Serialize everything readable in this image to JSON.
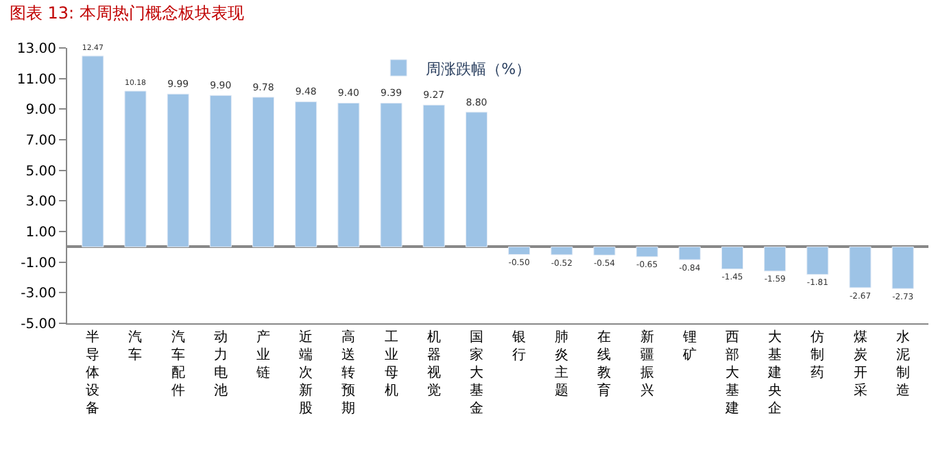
{
  "chart_data": {
    "type": "bar",
    "title": "图表 13: 本周热门概念板块表现",
    "categories": [
      "半导体设备",
      "汽车",
      "汽车配件",
      "动力电池",
      "产业链",
      "近端次新股",
      "高送转预期",
      "工业母机",
      "机器视觉",
      "国家大基金",
      "银行",
      "肺炎主题",
      "在线教育",
      "新疆振兴",
      "锂矿",
      "西部大基建",
      "大基建央企",
      "仿制药",
      "煤炭开采",
      "水泥制造"
    ],
    "series": [
      {
        "name": "周涨跌幅（%）",
        "color": "#9dc3e6",
        "values": [
          12.47,
          10.18,
          9.99,
          9.9,
          9.78,
          9.48,
          9.4,
          9.39,
          9.27,
          8.8,
          -0.5,
          -0.52,
          -0.54,
          -0.65,
          -0.84,
          -1.45,
          -1.59,
          -1.81,
          -2.67,
          -2.73
        ],
        "value_labels": [
          "12.47",
          "10.18",
          "9.99",
          "9.90",
          "9.78",
          "9.48",
          "9.40",
          "9.39",
          "9.27",
          "8.80",
          "-0.50",
          "-0.52",
          "-0.54",
          "-0.65",
          "-0.84",
          "-1.45",
          "-1.59",
          "-1.81",
          "-2.67",
          "-2.73"
        ]
      }
    ],
    "ylim": [
      -5,
      13
    ],
    "yticks": [
      {
        "value": -5,
        "label": "-5.00"
      },
      {
        "value": -3,
        "label": "-3.00"
      },
      {
        "value": -1,
        "label": "-1.00"
      },
      {
        "value": 1,
        "label": "1.00"
      },
      {
        "value": 3,
        "label": "3.00"
      },
      {
        "value": 5,
        "label": "5.00"
      },
      {
        "value": 7,
        "label": "7.00"
      },
      {
        "value": 9,
        "label": "9.00"
      },
      {
        "value": 11,
        "label": "11.00"
      },
      {
        "value": 13,
        "label": "13.00"
      }
    ],
    "legend": "top"
  }
}
